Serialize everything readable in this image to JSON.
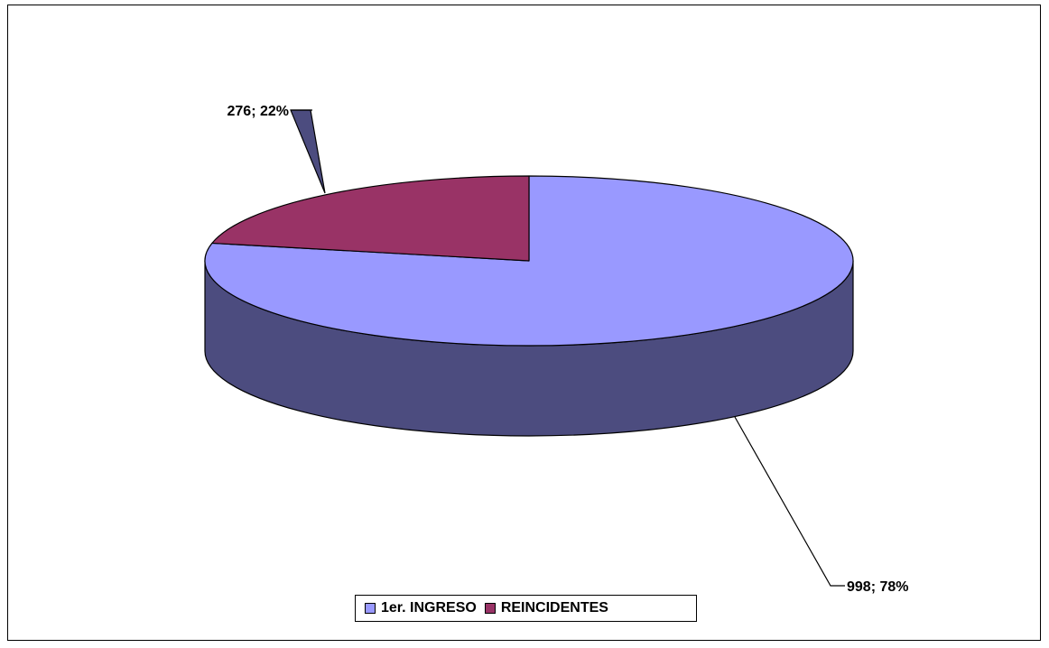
{
  "chart_data": {
    "type": "pie",
    "style": "3d",
    "slices": [
      {
        "name": "1er. INGRESO",
        "value": 998,
        "percent": 78,
        "label": "998; 78%",
        "color": "#9999ff",
        "side_color": "#4c4c7f"
      },
      {
        "name": "REINCIDENTES",
        "value": 276,
        "percent": 22,
        "label": "276; 22%",
        "color": "#993366",
        "side_color": "#4c4c7f"
      }
    ],
    "legend": {
      "position": "bottom"
    }
  }
}
